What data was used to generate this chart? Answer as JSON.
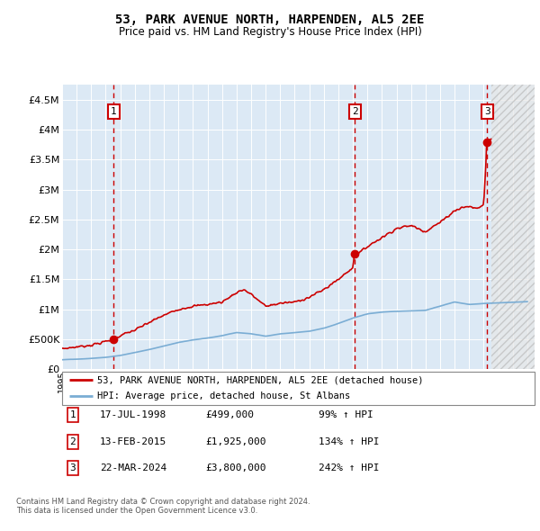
{
  "title": "53, PARK AVENUE NORTH, HARPENDEN, AL5 2EE",
  "subtitle": "Price paid vs. HM Land Registry's House Price Index (HPI)",
  "ylabel_ticks": [
    0,
    500000,
    1000000,
    1500000,
    2000000,
    2500000,
    3000000,
    3500000,
    4000000,
    4500000
  ],
  "ylabel_labels": [
    "£0",
    "£500K",
    "£1M",
    "£1.5M",
    "£2M",
    "£2.5M",
    "£3M",
    "£3.5M",
    "£4M",
    "£4.5M"
  ],
  "xmin": 1995.0,
  "xmax": 2027.5,
  "ymin": 0,
  "ymax": 4750000,
  "sale_dates": [
    1998.54,
    2015.12,
    2024.23
  ],
  "sale_prices": [
    499000,
    1925000,
    3800000
  ],
  "sale_labels": [
    "1",
    "2",
    "3"
  ],
  "sale_date_strs": [
    "17-JUL-1998",
    "13-FEB-2015",
    "22-MAR-2024"
  ],
  "sale_price_strs": [
    "£499,000",
    "£1,925,000",
    "£3,800,000"
  ],
  "sale_hpi_strs": [
    "99% ↑ HPI",
    "134% ↑ HPI",
    "242% ↑ HPI"
  ],
  "hpi_line_color": "#7aadd4",
  "price_line_color": "#cc0000",
  "background_color": "#dce9f5",
  "future_start": 2024.5,
  "footer_line1": "Contains HM Land Registry data © Crown copyright and database right 2024.",
  "footer_line2": "This data is licensed under the Open Government Licence v3.0.",
  "legend_line1": "53, PARK AVENUE NORTH, HARPENDEN, AL5 2EE (detached house)",
  "legend_line2": "HPI: Average price, detached house, St Albans"
}
